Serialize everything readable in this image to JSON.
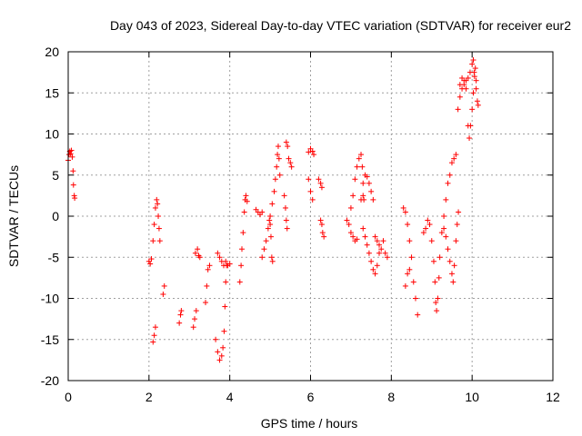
{
  "chart_data": {
    "type": "scatter",
    "title": "Day 043 of 2023, Sidereal Day-to-day VTEC variation (SDTVAR) for receiver eur2",
    "xlabel": "GPS time / hours",
    "ylabel": "SDTVAR / TECUs",
    "xlim": [
      0,
      12
    ],
    "ylim": [
      -20,
      20
    ],
    "x_ticks": [
      0,
      2,
      4,
      6,
      8,
      10,
      12
    ],
    "y_ticks": [
      -20,
      -15,
      -10,
      -5,
      0,
      5,
      10,
      15,
      20
    ],
    "x_tick_labels": [
      "0",
      "2",
      "4",
      "6",
      "8",
      "10",
      "12"
    ],
    "y_tick_labels": [
      "-20",
      "-15",
      "-10",
      "-5",
      "0",
      "5",
      "10",
      "15",
      "20"
    ],
    "grid": true,
    "marker": "+",
    "color": "#ff0000",
    "series": [
      {
        "name": "SDTVAR",
        "segments": [
          [
            [
              0.0,
              6.8
            ],
            [
              0.02,
              7.5
            ],
            [
              0.04,
              7.9
            ],
            [
              0.06,
              7.6
            ],
            [
              0.08,
              8.0
            ],
            [
              0.1,
              7.2
            ],
            [
              0.12,
              5.5
            ],
            [
              0.13,
              3.8
            ],
            [
              0.15,
              2.5
            ],
            [
              0.16,
              2.2
            ]
          ],
          [
            [
              2.0,
              -5.5
            ],
            [
              2.03,
              -5.8
            ],
            [
              2.06,
              -5.2
            ],
            [
              2.1,
              -3.0
            ],
            [
              2.13,
              -1.0
            ],
            [
              2.16,
              1.0
            ],
            [
              2.19,
              2.0
            ],
            [
              2.21,
              1.5
            ],
            [
              2.23,
              0.0
            ],
            [
              2.25,
              -1.5
            ],
            [
              2.27,
              -3.0
            ]
          ],
          [
            [
              2.1,
              -15.3
            ],
            [
              2.13,
              -14.5
            ],
            [
              2.16,
              -13.5
            ]
          ],
          [
            [
              2.35,
              -9.5
            ],
            [
              2.38,
              -8.5
            ]
          ],
          [
            [
              2.75,
              -13.0
            ],
            [
              2.78,
              -12.0
            ],
            [
              2.8,
              -11.5
            ]
          ],
          [
            [
              3.1,
              -13.5
            ],
            [
              3.13,
              -12.5
            ],
            [
              3.17,
              -11.5
            ]
          ],
          [
            [
              3.15,
              -4.5
            ],
            [
              3.2,
              -4.0
            ],
            [
              3.23,
              -4.8
            ],
            [
              3.26,
              -5.0
            ]
          ],
          [
            [
              3.4,
              -10.5
            ],
            [
              3.43,
              -8.5
            ],
            [
              3.46,
              -6.5
            ],
            [
              3.5,
              -6.0
            ]
          ],
          [
            [
              3.65,
              -15.0
            ],
            [
              3.7,
              -16.5
            ],
            [
              3.75,
              -17.5
            ],
            [
              3.8,
              -17.0
            ],
            [
              3.83,
              -16.0
            ],
            [
              3.86,
              -14.0
            ],
            [
              3.88,
              -11.0
            ],
            [
              3.9,
              -8.0
            ],
            [
              3.92,
              -6.0
            ]
          ],
          [
            [
              3.7,
              -4.5
            ],
            [
              3.75,
              -5.0
            ],
            [
              3.8,
              -5.5
            ],
            [
              3.85,
              -6.0
            ],
            [
              3.9,
              -5.5
            ],
            [
              3.95,
              -6.0
            ],
            [
              4.0,
              -5.8
            ]
          ],
          [
            [
              4.25,
              -8.0
            ],
            [
              4.28,
              -6.0
            ],
            [
              4.3,
              -4.0
            ],
            [
              4.33,
              -2.0
            ],
            [
              4.36,
              0.5
            ],
            [
              4.38,
              2.0
            ],
            [
              4.4,
              2.5
            ],
            [
              4.43,
              1.8
            ]
          ],
          [
            [
              4.65,
              0.8
            ],
            [
              4.7,
              0.5
            ],
            [
              4.75,
              0.2
            ],
            [
              4.8,
              0.5
            ]
          ],
          [
            [
              4.8,
              -5.0
            ],
            [
              4.85,
              -4.0
            ],
            [
              4.9,
              -3.0
            ],
            [
              4.95,
              -1.5
            ],
            [
              4.98,
              -0.5
            ],
            [
              5.0,
              -1.0
            ],
            [
              5.02,
              -2.5
            ],
            [
              5.04,
              -5.0
            ],
            [
              5.06,
              -5.5
            ]
          ],
          [
            [
              5.0,
              0.0
            ],
            [
              5.05,
              1.5
            ],
            [
              5.1,
              3.0
            ],
            [
              5.13,
              4.5
            ],
            [
              5.16,
              6.0
            ],
            [
              5.18,
              7.5
            ],
            [
              5.2,
              8.5
            ],
            [
              5.22,
              7.0
            ],
            [
              5.24,
              5.0
            ]
          ],
          [
            [
              5.35,
              2.5
            ],
            [
              5.38,
              1.0
            ],
            [
              5.4,
              -0.5
            ],
            [
              5.42,
              -1.5
            ]
          ],
          [
            [
              5.4,
              9.0
            ],
            [
              5.43,
              8.5
            ],
            [
              5.46,
              7.0
            ],
            [
              5.5,
              6.5
            ],
            [
              5.53,
              6.0
            ]
          ],
          [
            [
              5.95,
              7.8
            ],
            [
              6.0,
              8.2
            ],
            [
              6.05,
              7.9
            ],
            [
              6.08,
              7.5
            ]
          ],
          [
            [
              5.95,
              4.5
            ],
            [
              6.0,
              3.0
            ],
            [
              6.05,
              2.0
            ]
          ],
          [
            [
              6.2,
              4.5
            ],
            [
              6.25,
              4.0
            ],
            [
              6.28,
              3.5
            ]
          ],
          [
            [
              6.25,
              -0.5
            ],
            [
              6.28,
              -1.0
            ],
            [
              6.3,
              -2.0
            ],
            [
              6.33,
              -2.5
            ]
          ],
          [
            [
              6.9,
              -0.5
            ],
            [
              6.95,
              -1.0
            ],
            [
              7.0,
              -2.0
            ],
            [
              7.05,
              -2.5
            ],
            [
              7.1,
              -3.0
            ],
            [
              7.15,
              -2.8
            ]
          ],
          [
            [
              7.0,
              1.0
            ],
            [
              7.05,
              2.5
            ],
            [
              7.1,
              4.5
            ],
            [
              7.15,
              6.0
            ],
            [
              7.2,
              7.0
            ],
            [
              7.25,
              7.5
            ],
            [
              7.28,
              6.0
            ],
            [
              7.3,
              4.0
            ],
            [
              7.32,
              2.0
            ]
          ],
          [
            [
              7.25,
              2.0
            ],
            [
              7.3,
              2.5
            ],
            [
              7.35,
              5.0
            ],
            [
              7.4,
              4.8
            ],
            [
              7.45,
              4.0
            ],
            [
              7.5,
              3.0
            ],
            [
              7.55,
              2.0
            ]
          ],
          [
            [
              7.3,
              -1.5
            ],
            [
              7.35,
              -2.5
            ],
            [
              7.4,
              -3.5
            ],
            [
              7.45,
              -4.5
            ],
            [
              7.5,
              -5.5
            ],
            [
              7.55,
              -6.5
            ],
            [
              7.6,
              -7.0
            ],
            [
              7.65,
              -6.0
            ],
            [
              7.7,
              -4.5
            ]
          ],
          [
            [
              7.6,
              -2.5
            ],
            [
              7.65,
              -3.0
            ],
            [
              7.7,
              -3.5
            ],
            [
              7.75,
              -4.0
            ],
            [
              7.8,
              -3.0
            ],
            [
              7.85,
              -4.5
            ],
            [
              7.9,
              -5.0
            ]
          ],
          [
            [
              8.3,
              1.0
            ],
            [
              8.35,
              0.5
            ],
            [
              8.4,
              -1.0
            ],
            [
              8.45,
              -3.0
            ],
            [
              8.5,
              -5.0
            ],
            [
              8.55,
              -8.0
            ],
            [
              8.6,
              -10.0
            ],
            [
              8.65,
              -12.0
            ]
          ],
          [
            [
              8.35,
              -8.5
            ],
            [
              8.4,
              -7.0
            ],
            [
              8.45,
              -6.5
            ]
          ],
          [
            [
              8.8,
              -2.0
            ],
            [
              8.85,
              -1.5
            ],
            [
              8.9,
              -0.5
            ],
            [
              8.95,
              -1.0
            ],
            [
              9.0,
              -3.0
            ],
            [
              9.05,
              -5.5
            ],
            [
              9.08,
              -8.0
            ],
            [
              9.1,
              -10.5
            ],
            [
              9.12,
              -11.5
            ],
            [
              9.15,
              -10.0
            ],
            [
              9.18,
              -7.5
            ],
            [
              9.2,
              -5.0
            ],
            [
              9.25,
              -2.0
            ],
            [
              9.3,
              0.0
            ],
            [
              9.35,
              2.0
            ],
            [
              9.4,
              4.0
            ],
            [
              9.45,
              5.0
            ],
            [
              9.5,
              6.5
            ],
            [
              9.55,
              7.0
            ],
            [
              9.6,
              7.5
            ]
          ],
          [
            [
              9.3,
              -1.5
            ],
            [
              9.35,
              -2.5
            ],
            [
              9.4,
              -4.0
            ],
            [
              9.45,
              -5.5
            ],
            [
              9.5,
              -7.0
            ],
            [
              9.53,
              -8.0
            ],
            [
              9.56,
              -6.0
            ],
            [
              9.6,
              -3.0
            ],
            [
              9.63,
              -1.0
            ],
            [
              9.66,
              0.5
            ]
          ],
          [
            [
              9.7,
              16.0
            ],
            [
              9.75,
              16.8
            ],
            [
              9.8,
              16.5
            ],
            [
              9.85,
              15.5
            ],
            [
              9.9,
              11.0
            ],
            [
              9.93,
              9.5
            ],
            [
              9.96,
              11.0
            ],
            [
              10.0,
              13.0
            ],
            [
              10.03,
              15.0
            ],
            [
              10.05,
              17.5
            ],
            [
              10.08,
              18.0
            ],
            [
              10.1,
              16.5
            ],
            [
              10.13,
              14.0
            ],
            [
              10.15,
              13.5
            ]
          ],
          [
            [
              9.65,
              13.0
            ],
            [
              9.7,
              14.5
            ],
            [
              9.75,
              15.5
            ],
            [
              9.8,
              16.0
            ],
            [
              9.85,
              16.5
            ],
            [
              9.9,
              16.8
            ],
            [
              9.95,
              17.5
            ],
            [
              10.0,
              18.5
            ],
            [
              10.03,
              19.0
            ],
            [
              10.06,
              17.0
            ],
            [
              10.1,
              15.5
            ]
          ]
        ]
      }
    ]
  }
}
